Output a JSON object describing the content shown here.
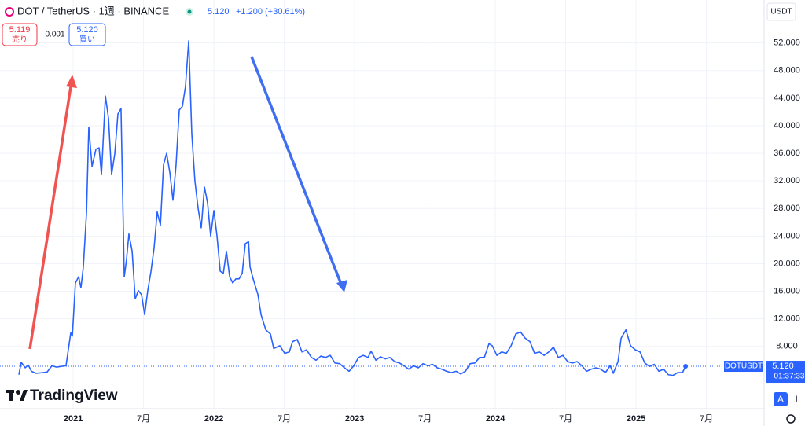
{
  "header": {
    "symbol": "DOT / TetherUS · 1週 · BINANCE",
    "price": "5.120",
    "change": "+1.200 (+30.61%)",
    "sell_price": "5.119",
    "sell_label": "売り",
    "spread": "0.001",
    "buy_price": "5.120",
    "buy_label": "買い",
    "currency": "USDT",
    "countdown": "01:37:33",
    "brand": "TradingView",
    "auto_button": "A",
    "log_button": "L"
  },
  "chart_data": {
    "type": "line",
    "x": [
      2020.614,
      2020.631,
      2020.659,
      2020.681,
      2020.703,
      2020.737,
      2020.782,
      2020.815,
      2020.849,
      2020.882,
      2020.916,
      2020.949,
      2020.983,
      2020.994,
      2021.016,
      2021.039,
      2021.055,
      2021.072,
      2021.095,
      2021.111,
      2021.134,
      2021.162,
      2021.184,
      2021.201,
      2021.229,
      2021.251,
      2021.273,
      2021.296,
      2021.318,
      2021.34,
      2021.363,
      2021.379,
      2021.396,
      2021.419,
      2021.441,
      2021.463,
      2021.486,
      2021.508,
      2021.53,
      2021.553,
      2021.575,
      2021.597,
      2021.62,
      2021.642,
      2021.664,
      2021.687,
      2021.709,
      2021.731,
      2021.754,
      2021.776,
      2021.798,
      2021.821,
      2021.843,
      2021.865,
      2021.888,
      2021.91,
      2021.933,
      2021.955,
      2021.977,
      2022.0,
      2022.022,
      2022.045,
      2022.067,
      2022.089,
      2022.112,
      2022.134,
      2022.156,
      2022.179,
      2022.201,
      2022.223,
      2022.246,
      2022.257,
      2022.279,
      2022.313,
      2022.335,
      2022.369,
      2022.402,
      2022.425,
      2022.469,
      2022.503,
      2022.536,
      2022.559,
      2022.592,
      2022.626,
      2022.659,
      2022.693,
      2022.726,
      2022.76,
      2022.793,
      2022.827,
      2022.86,
      2022.894,
      2022.927,
      2022.961,
      2022.994,
      2023.028,
      2023.061,
      2023.095,
      2023.117,
      2023.151,
      2023.184,
      2023.218,
      2023.251,
      2023.285,
      2023.318,
      2023.352,
      2023.385,
      2023.419,
      2023.453,
      2023.486,
      2023.52,
      2023.553,
      2023.587,
      2023.62,
      2023.654,
      2023.687,
      2023.721,
      2023.754,
      2023.788,
      2023.821,
      2023.855,
      2023.888,
      2023.922,
      2023.955,
      2023.978,
      2024.011,
      2024.045,
      2024.078,
      2024.112,
      2024.145,
      2024.179,
      2024.212,
      2024.246,
      2024.279,
      2024.313,
      2024.346,
      2024.38,
      2024.413,
      2024.447,
      2024.48,
      2024.514,
      2024.547,
      2024.581,
      2024.615,
      2024.648,
      2024.682,
      2024.715,
      2024.749,
      2024.782,
      2024.816,
      2024.838,
      2024.872,
      2024.894,
      2024.928,
      2024.961,
      2024.995,
      2025.028,
      2025.062,
      2025.095,
      2025.129,
      2025.162,
      2025.196,
      2025.229,
      2025.263,
      2025.296,
      2025.33,
      2025.352
    ],
    "series": [
      {
        "name": "DOTUSDT",
        "color": "#2962ff",
        "values": [
          3.9,
          5.7,
          4.9,
          5.3,
          4.4,
          4.1,
          4.2,
          4.3,
          5.2,
          5.0,
          5.1,
          5.2,
          10.0,
          9.5,
          17.2,
          18.1,
          16.5,
          19.5,
          27.5,
          39.8,
          34.1,
          36.6,
          36.8,
          32.9,
          44.3,
          41.1,
          32.9,
          36.0,
          41.7,
          42.5,
          18.1,
          20.6,
          24.3,
          21.8,
          14.9,
          16.1,
          15.5,
          12.6,
          16.1,
          18.9,
          22.3,
          27.5,
          25.6,
          34.3,
          36.0,
          33.2,
          29.2,
          34.3,
          42.3,
          42.8,
          45.7,
          52.3,
          38.8,
          32.0,
          28.0,
          25.2,
          31.1,
          28.8,
          24.0,
          27.7,
          24.0,
          18.9,
          18.6,
          21.8,
          18.1,
          17.2,
          17.8,
          17.8,
          18.6,
          22.9,
          23.2,
          19.5,
          17.8,
          15.5,
          12.6,
          10.4,
          9.8,
          7.7,
          8.1,
          7.0,
          7.2,
          8.7,
          9.0,
          7.2,
          7.5,
          6.4,
          6.0,
          6.6,
          6.4,
          6.7,
          5.6,
          5.5,
          4.9,
          4.4,
          5.2,
          6.4,
          6.7,
          6.4,
          7.3,
          6.0,
          6.5,
          6.2,
          6.4,
          5.8,
          5.6,
          5.2,
          4.7,
          5.2,
          4.9,
          5.5,
          5.2,
          5.4,
          4.9,
          4.7,
          4.4,
          4.2,
          4.4,
          4.0,
          4.4,
          5.5,
          5.6,
          6.4,
          6.4,
          8.4,
          8.1,
          6.7,
          7.2,
          7.0,
          8.1,
          9.8,
          10.1,
          9.2,
          8.7,
          7.0,
          7.2,
          6.7,
          7.2,
          7.9,
          6.4,
          6.7,
          5.8,
          5.6,
          5.8,
          5.2,
          4.4,
          4.7,
          4.9,
          4.7,
          4.2,
          5.2,
          4.1,
          5.8,
          9.2,
          10.4,
          8.1,
          7.5,
          7.2,
          5.6,
          5.1,
          5.4,
          4.4,
          4.7,
          3.9,
          3.8,
          4.2,
          4.2,
          5.12
        ]
      }
    ],
    "last_price": {
      "value": 5.12,
      "label": "5.120"
    },
    "xlim": [
      2020.48,
      2025.91
    ],
    "ylim": [
      -1.03,
      58.23
    ],
    "xticks": [
      {
        "value": 2021,
        "label": "2021"
      },
      {
        "value": 2021.5,
        "label": "7月"
      },
      {
        "value": 2022,
        "label": "2022"
      },
      {
        "value": 2022.5,
        "label": "7月"
      },
      {
        "value": 2023,
        "label": "2023"
      },
      {
        "value": 2023.5,
        "label": "7月"
      },
      {
        "value": 2024,
        "label": "2024"
      },
      {
        "value": 2024.5,
        "label": "7月"
      },
      {
        "value": 2025,
        "label": "2025"
      },
      {
        "value": 2025.5,
        "label": "7月"
      }
    ],
    "yticks": [
      {
        "value": 8,
        "label": "8.000"
      },
      {
        "value": 12,
        "label": "12.000"
      },
      {
        "value": 16,
        "label": "16.000"
      },
      {
        "value": 20,
        "label": "20.000"
      },
      {
        "value": 24,
        "label": "24.000"
      },
      {
        "value": 28,
        "label": "28.000"
      },
      {
        "value": 32,
        "label": "32.000"
      },
      {
        "value": 36,
        "label": "36.000"
      },
      {
        "value": 40,
        "label": "40.000"
      },
      {
        "value": 44,
        "label": "44.000"
      },
      {
        "value": 48,
        "label": "48.000"
      },
      {
        "value": 52,
        "label": "52.000"
      }
    ],
    "grid": true
  }
}
